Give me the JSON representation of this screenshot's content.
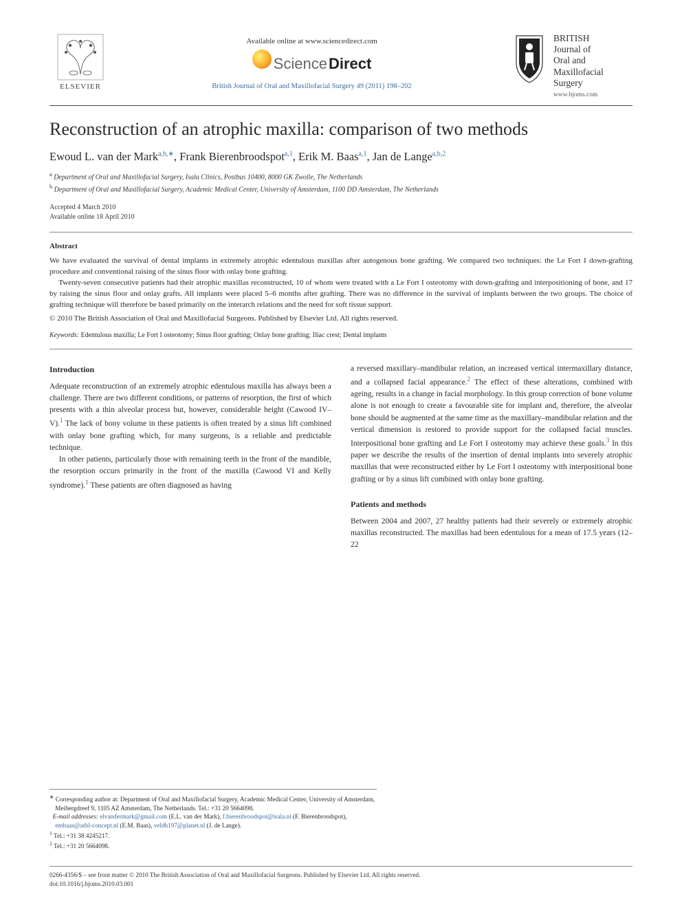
{
  "header": {
    "availableAt": "Available online at www.sciencedirect.com",
    "sdBrand1": "Science",
    "sdBrand2": "Direct",
    "journalCitation": "British Journal of Oral and Maxillofacial Surgery 49 (2011) 198–202",
    "elsevierWord": "ELSEVIER",
    "journalName": "BRITISH\nJournal of\nOral and\nMaxillofacial\nSurgery",
    "journalSite": "www.bjoms.com"
  },
  "article": {
    "title": "Reconstruction of an atrophic maxilla: comparison of two methods",
    "authorsHtml": "Ewoud L. van der Mark<sup>a,b,∗</sup>, Frank Bierenbroodspot<sup>a,1</sup>, Erik M. Baas<sup>a,1</sup>, Jan de Lange<sup>a,b,2</sup>",
    "affilA": "Department of Oral and Maxillofacial Surgery, Isala Clinics, Postbus 10400, 8000 GK Zwolle, The Netherlands",
    "affilB": "Department of Oral and Maxillofacial Surgery, Academic Medical Center, University of Amsterdam, 1100 DD Amsterdam, The Netherlands",
    "accepted": "Accepted 4 March 2010",
    "online": "Available online 18 April 2010"
  },
  "abstract": {
    "heading": "Abstract",
    "p1": "We have evaluated the survival of dental implants in extremely atrophic edentulous maxillas after autogenous bone grafting. We compared two techniques: the Le Fort I down-grafting procedure and conventional raising of the sinus floor with onlay bone grafting.",
    "p2": "Twenty-seven consecutive patients had their atrophic maxillas reconstructed, 10 of whom were treated with a Le Fort I osteotomy with down-grafting and interpositioning of bone, and 17 by raising the sinus floor and onlay grafts. All implants were placed 5–6 months after grafting. There was no difference in the survival of implants between the two groups. The choice of grafting technique will therefore be based primarily on the interarch relations and the need for soft tissue support.",
    "copyright": "© 2010 The British Association of Oral and Maxillofacial Surgeons. Published by Elsevier Ltd. All rights reserved.",
    "keywordsLabel": "Keywords:",
    "keywords": "Edentulous maxilla; Le Fort I osteotomy; Sinus floor grafting; Onlay bone grafting; Iliac crest; Dental implants"
  },
  "body": {
    "introHeading": "Introduction",
    "introP1": "Adequate reconstruction of an extremely atrophic edentulous maxilla has always been a challenge. There are two different conditions, or patterns of resorption, the first of which presents with a thin alveolar process but, however, considerable height (Cawood IV–V).",
    "introP1b": " The lack of bony volume in these patients is often treated by a sinus lift combined with onlay bone grafting which, for many surgeons, is a reliable and predictable technique.",
    "introP2": "In other patients, particularly those with remaining teeth in the front of the mandible, the resorption occurs primarily in the front of the maxilla (Cawood VI and Kelly syndrome).",
    "introP2b": " These patients are often diagnosed as having ",
    "col2a": "a reversed maxillary–mandibular relation, an increased vertical intermaxillary distance, and a collapsed facial appearance.",
    "col2b": " The effect of these alterations, combined with ageing, results in a change in facial morphology. In this group correction of bone volume alone is not enough to create a favourable site for implant and, therefore, the alveolar bone should be augmented at the same time as the maxillary–mandibular relation and the vertical dimension is restored to provide support for the collapsed facial muscles. Interpositional bone grafting and Le Fort I osteotomy may achieve these goals.",
    "col2c": " In this paper we describe the results of the insertion of dental implants into severely atrophic maxillas that were reconstructed either by Le Fort I osteotomy with interpositional bone grafting or by a sinus lift combined with onlay bone grafting.",
    "pmHeading": "Patients and methods",
    "pmP1": "Between 2004 and 2007, 27 healthy patients had their severely or extremely atrophic maxillas reconstructed. The maxillas had been edentulous for a mean of 17.5 years (12–22"
  },
  "footnotes": {
    "corr": "Corresponding author at: Department of Oral and Maxillofacial Surgery, Academic Medical Center, University of Amsterdam, Meibergdreef 9, 1105 AZ Amsterdam, The Netherlands. Tel.: +31 20 5664098.",
    "emailsLabel": "E-mail addresses:",
    "email1": "elvandermark@gmail.com",
    "email1who": "(E.L. van der Mark),",
    "email2": "f.bierenbroodspot@isala.nl",
    "email2who": "(F. Bierenbroodspot),",
    "email3": "embaas@adsl-concept.nl",
    "email3who": "(E.M. Baas),",
    "email4": "veldh197@planet.nl",
    "email4who": "(J. de Lange).",
    "tel1": "Tel.: +31 38 4245217.",
    "tel2": "Tel.: +31 20 5664098."
  },
  "footer": {
    "line1": "0266-4356/$ – see front matter © 2010 The British Association of Oral and Maxillofacial Surgeons. Published by Elsevier Ltd. All rights reserved.",
    "doi": "doi:10.1016/j.bjoms.2010.03.001"
  },
  "colors": {
    "link": "#3a6b9e",
    "text": "#2a2a2a",
    "rule": "#444444"
  }
}
